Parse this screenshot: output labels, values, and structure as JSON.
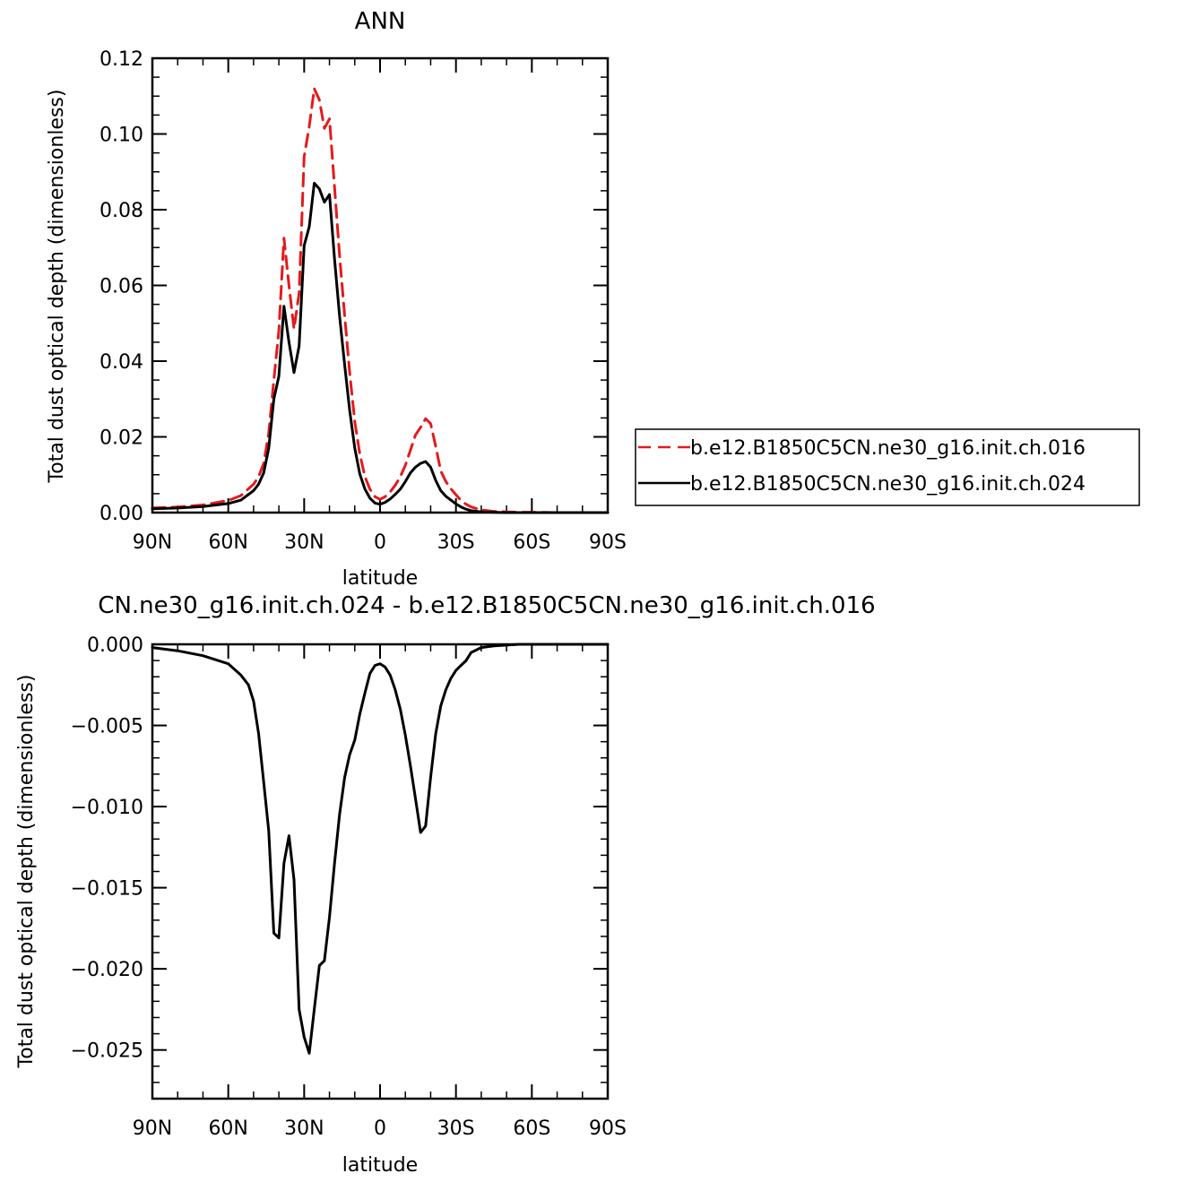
{
  "chart_data": [
    {
      "type": "line",
      "title": "ANN",
      "xlabel": "latitude",
      "ylabel": "Total dust optical depth (dimensionless)",
      "xlim": [
        90,
        -90
      ],
      "ylim": [
        0,
        0.12
      ],
      "x_ticks": [
        90,
        60,
        30,
        0,
        -30,
        -60,
        -90
      ],
      "x_tick_labels": [
        "90N",
        "60N",
        "30N",
        "0",
        "30S",
        "60S",
        "90S"
      ],
      "y_ticks": [
        0,
        0.02,
        0.04,
        0.06,
        0.08,
        0.1,
        0.12
      ],
      "y_tick_labels": [
        "0.00",
        "0.02",
        "0.04",
        "0.06",
        "0.08",
        "0.10",
        "0.12"
      ],
      "grid": false,
      "legend_position": "right",
      "series": [
        {
          "name": "b.e12.B1850C5CN.ne30_g16.init.ch.016",
          "color": "#e41a1c",
          "dash": "dashed",
          "x": [
            90,
            80,
            70,
            60,
            55,
            50,
            48,
            46,
            44,
            42,
            40,
            38,
            36,
            34,
            32,
            30,
            28,
            26,
            24,
            22,
            20,
            18,
            16,
            14,
            12,
            10,
            8,
            6,
            4,
            2,
            0,
            -2,
            -4,
            -6,
            -8,
            -10,
            -12,
            -14,
            -16,
            -18,
            -20,
            -22,
            -24,
            -26,
            -28,
            -30,
            -32,
            -34,
            -36,
            -40,
            -45,
            -50,
            -55,
            -60,
            -70,
            -80,
            -90
          ],
          "y": [
            0.0012,
            0.0015,
            0.002,
            0.0032,
            0.0045,
            0.0075,
            0.0095,
            0.013,
            0.021,
            0.035,
            0.048,
            0.0725,
            0.06,
            0.0485,
            0.058,
            0.094,
            0.102,
            0.112,
            0.109,
            0.1015,
            0.104,
            0.086,
            0.068,
            0.052,
            0.037,
            0.024,
            0.0155,
            0.0095,
            0.0062,
            0.0042,
            0.0035,
            0.0042,
            0.0055,
            0.0072,
            0.0095,
            0.0125,
            0.0165,
            0.0205,
            0.0225,
            0.0248,
            0.0235,
            0.0175,
            0.011,
            0.0082,
            0.0063,
            0.0047,
            0.0032,
            0.0022,
            0.0015,
            0.0007,
            0.0003,
            0.0002,
            0.0001,
            0.0001,
            0.0,
            0.0,
            0.0
          ]
        },
        {
          "name": "b.e12.B1850C5CN.ne30_g16.init.ch.024",
          "color": "#000000",
          "dash": "solid",
          "x": [
            90,
            80,
            70,
            60,
            55,
            50,
            48,
            46,
            44,
            42,
            40,
            38,
            36,
            34,
            32,
            30,
            28,
            26,
            24,
            22,
            20,
            18,
            16,
            14,
            12,
            10,
            8,
            6,
            4,
            2,
            0,
            -2,
            -4,
            -6,
            -8,
            -10,
            -12,
            -14,
            -16,
            -18,
            -20,
            -22,
            -24,
            -26,
            -28,
            -30,
            -32,
            -34,
            -36,
            -40,
            -45,
            -50,
            -55,
            -60,
            -70,
            -80,
            -90
          ],
          "y": [
            0.001,
            0.0012,
            0.0016,
            0.0024,
            0.0033,
            0.0058,
            0.0075,
            0.0105,
            0.017,
            0.03,
            0.036,
            0.0545,
            0.045,
            0.037,
            0.044,
            0.0705,
            0.0755,
            0.087,
            0.0855,
            0.082,
            0.084,
            0.067,
            0.052,
            0.039,
            0.027,
            0.017,
            0.0102,
            0.0062,
            0.0038,
            0.0025,
            0.0022,
            0.0027,
            0.0036,
            0.0048,
            0.0062,
            0.0082,
            0.0105,
            0.012,
            0.013,
            0.0135,
            0.012,
            0.0085,
            0.0058,
            0.0043,
            0.0033,
            0.0023,
            0.0015,
            0.0009,
            0.0005,
            0.0002,
            0.0001,
            0.0,
            0.0,
            0.0,
            0.0,
            0.0,
            0.0
          ]
        }
      ]
    },
    {
      "type": "line",
      "title": "CN.ne30_g16.init.ch.024 - b.e12.B1850C5CN.ne30_g16.init.ch.016",
      "xlabel": "latitude",
      "ylabel": "Total dust optical depth (dimensionless)",
      "xlim": [
        90,
        -90
      ],
      "ylim": [
        -0.028,
        0.0
      ],
      "x_ticks": [
        90,
        60,
        30,
        0,
        -30,
        -60,
        -90
      ],
      "x_tick_labels": [
        "90N",
        "60N",
        "30N",
        "0",
        "30S",
        "60S",
        "90S"
      ],
      "y_ticks": [
        0.0,
        -0.005,
        -0.01,
        -0.015,
        -0.02,
        -0.025
      ],
      "y_tick_labels": [
        "0.000",
        "−0.005",
        "−0.010",
        "−0.015",
        "−0.020",
        "−0.025"
      ],
      "grid": false,
      "series": [
        {
          "color": "#000000",
          "dash": "solid",
          "x": [
            90,
            80,
            70,
            60,
            55,
            52,
            50,
            48,
            46,
            44,
            42,
            40,
            38,
            36,
            34,
            32,
            30,
            28,
            26,
            24,
            22,
            20,
            18,
            16,
            14,
            12,
            10,
            8,
            6,
            4,
            2,
            0,
            -2,
            -4,
            -6,
            -8,
            -10,
            -12,
            -14,
            -16,
            -18,
            -20,
            -22,
            -24,
            -26,
            -28,
            -30,
            -32,
            -34,
            -36,
            -40,
            -45,
            -50,
            -55,
            -60,
            -70,
            -80,
            -90
          ],
          "y": [
            -0.0002,
            -0.0004,
            -0.0007,
            -0.0012,
            -0.0019,
            -0.0025,
            -0.0035,
            -0.0055,
            -0.0085,
            -0.0115,
            -0.0178,
            -0.0181,
            -0.0135,
            -0.0118,
            -0.0145,
            -0.0225,
            -0.0242,
            -0.0252,
            -0.0225,
            -0.0198,
            -0.0195,
            -0.0168,
            -0.0135,
            -0.0105,
            -0.0082,
            -0.0068,
            -0.0059,
            -0.0043,
            -0.003,
            -0.0018,
            -0.0013,
            -0.0012,
            -0.0014,
            -0.0019,
            -0.0028,
            -0.004,
            -0.0056,
            -0.0075,
            -0.0095,
            -0.0116,
            -0.0112,
            -0.0082,
            -0.0055,
            -0.0038,
            -0.0028,
            -0.0021,
            -0.0016,
            -0.0013,
            -0.001,
            -0.0005,
            -0.0002,
            -0.0001,
            -5e-05,
            0.0,
            0.0,
            0.0,
            0.0,
            0.0
          ]
        }
      ]
    }
  ]
}
